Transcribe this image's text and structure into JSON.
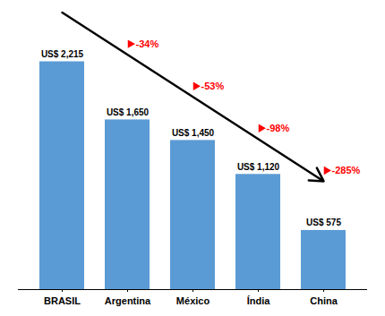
{
  "chart_data": {
    "type": "bar",
    "categories": [
      "BRASIL",
      "Argentina",
      "México",
      "Índia",
      "China"
    ],
    "values": [
      2215,
      1650,
      1450,
      1120,
      575
    ],
    "value_labels": [
      "US$ 2,215",
      "US$ 1,650",
      "US$ 1,450",
      "US$ 1,120",
      "US$ 575"
    ],
    "data_labels": true,
    "color": "#5B9BD5",
    "ylim": [
      0,
      2550
    ],
    "tick_labels": "x",
    "annotations": [
      {
        "text": "-34%",
        "category": "Argentina",
        "color": "#FF0000",
        "marker": "triangle"
      },
      {
        "text": "-53%",
        "category": "México",
        "color": "#FF0000",
        "marker": "triangle"
      },
      {
        "text": "-98%",
        "category": "Índia",
        "color": "#FF0000",
        "marker": "triangle"
      },
      {
        "text": "-285%",
        "category": "China",
        "color": "#FF0000",
        "marker": "triangle"
      }
    ]
  }
}
